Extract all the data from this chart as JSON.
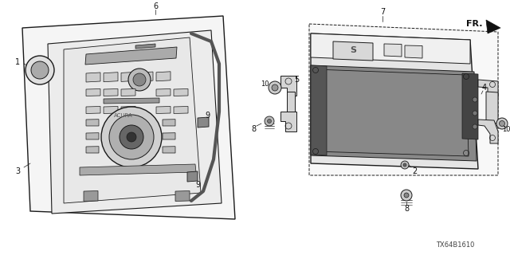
{
  "bg_color": "#ffffff",
  "line_color": "#1a1a1a",
  "diagram_code": "TX64B1610",
  "label_fontsize": 7,
  "code_fontsize": 6,
  "fr_label": "FR.",
  "part_ids": [
    "1",
    "3",
    "6",
    "9",
    "9",
    "8",
    "10",
    "5",
    "7",
    "2",
    "4",
    "10",
    "8"
  ]
}
